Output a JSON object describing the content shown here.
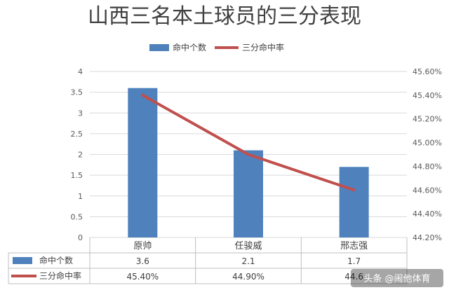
{
  "chart_data": {
    "type": "bar",
    "title": "山西三名本土球员的三分表现",
    "categories": [
      "原帅",
      "任骏威",
      "邢志强"
    ],
    "series": [
      {
        "name": "命中个数",
        "type": "bar",
        "axis": "left",
        "color": "#4F81BD",
        "values": [
          3.6,
          2.1,
          1.7
        ],
        "labels": [
          "3.6",
          "2.1",
          "1.7"
        ]
      },
      {
        "name": "三分命中率",
        "type": "line",
        "axis": "right",
        "color": "#C0504D",
        "values": [
          45.4,
          44.9,
          44.6
        ],
        "labels": [
          "45.40%",
          "44.90%",
          "44.6"
        ]
      }
    ],
    "y_left": {
      "ylim": [
        0,
        4
      ],
      "ticks": [
        "0",
        "0.5",
        "1",
        "1.5",
        "2",
        "2.5",
        "3",
        "3.5",
        "4"
      ]
    },
    "y_right": {
      "ylim": [
        44.2,
        45.6
      ],
      "ticks": [
        "44.20%",
        "44.40%",
        "44.60%",
        "44.80%",
        "45.00%",
        "45.20%",
        "45.40%",
        "45.60%"
      ]
    },
    "grid": true,
    "legend": "top",
    "data_table": true
  },
  "watermark": "头条 @闹他体育"
}
